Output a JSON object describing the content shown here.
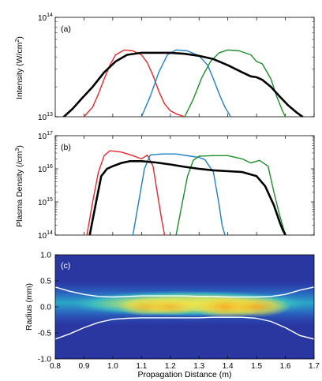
{
  "chart_data": [
    {
      "type": "line",
      "panel_label": "(a)",
      "ylabel": "Intensity (W/cm",
      "ylabel_sup": "2",
      "ylabel_close": ")",
      "yscale": "log",
      "xlim": [
        0.8,
        1.7
      ],
      "ylim": [
        10000000000000.0,
        100000000000000.0
      ],
      "y_ticklabels": [
        {
          "value": 10000000000000.0,
          "base": "10",
          "exp": "13"
        },
        {
          "value": 100000000000000.0,
          "base": "10",
          "exp": "14"
        }
      ],
      "series": [
        {
          "color": "#e8262a",
          "x": [
            0.9,
            0.93,
            0.95,
            0.97,
            0.99,
            1.01,
            1.04,
            1.07,
            1.1,
            1.12,
            1.14,
            1.16,
            1.18,
            1.2,
            1.22,
            1.25
          ],
          "y": [
            10000000000000.0,
            12500000000000.0,
            17000000000000.0,
            24000000000000.0,
            33000000000000.0,
            42000000000000.0,
            47000000000000.0,
            46000000000000.0,
            42000000000000.0,
            35000000000000.0,
            26000000000000.0,
            18000000000000.0,
            13500000000000.0,
            11500000000000.0,
            10700000000000.0,
            10000000000000.0
          ]
        },
        {
          "color": "#1f7fc4",
          "x": [
            1.1,
            1.13,
            1.16,
            1.19,
            1.22,
            1.26,
            1.3,
            1.33,
            1.35,
            1.37,
            1.39,
            1.41
          ],
          "y": [
            10000000000000.0,
            16000000000000.0,
            28000000000000.0,
            42000000000000.0,
            47000000000000.0,
            46000000000000.0,
            41000000000000.0,
            33000000000000.0,
            24000000000000.0,
            17000000000000.0,
            12500000000000.0,
            10000000000000.0
          ]
        },
        {
          "color": "#1e8c2c",
          "x": [
            1.25,
            1.28,
            1.31,
            1.34,
            1.37,
            1.4,
            1.44,
            1.48,
            1.5,
            1.52,
            1.55,
            1.57,
            1.59,
            1.6
          ],
          "y": [
            10000000000000.0,
            15000000000000.0,
            25000000000000.0,
            36000000000000.0,
            44000000000000.0,
            47000000000000.0,
            46000000000000.0,
            42000000000000.0,
            36000000000000.0,
            34000000000000.0,
            24000000000000.0,
            16000000000000.0,
            11500000000000.0,
            10000000000000.0
          ]
        },
        {
          "color": "#000000",
          "x": [
            0.83,
            0.86,
            0.89,
            0.93,
            0.97,
            1.01,
            1.05,
            1.1,
            1.15,
            1.2,
            1.25,
            1.3,
            1.35,
            1.4,
            1.45,
            1.48,
            1.5,
            1.52,
            1.55,
            1.58,
            1.61,
            1.64,
            1.66
          ],
          "y": [
            10000000000000.0,
            12000000000000.0,
            15000000000000.0,
            20000000000000.0,
            28000000000000.0,
            36000000000000.0,
            42000000000000.0,
            44000000000000.0,
            44000000000000.0,
            44000000000000.0,
            43000000000000.0,
            41000000000000.0,
            38000000000000.0,
            33000000000000.0,
            28000000000000.0,
            25500000000000.0,
            25000000000000.0,
            23500000000000.0,
            20000000000000.0,
            16000000000000.0,
            13000000000000.0,
            11000000000000.0,
            10000000000000.0
          ]
        }
      ]
    },
    {
      "type": "line",
      "panel_label": "(b)",
      "ylabel": "Plasma Density (/cm",
      "ylabel_sup": "3",
      "ylabel_close": ")",
      "yscale": "log",
      "xlim": [
        0.8,
        1.7
      ],
      "ylim": [
        100000000000000.0,
        1e+17
      ],
      "y_ticklabels": [
        {
          "value": 100000000000000.0,
          "base": "10",
          "exp": "14"
        },
        {
          "value": 1000000000000000.0,
          "base": "10",
          "exp": "15"
        },
        {
          "value": 1e+16,
          "base": "10",
          "exp": "16"
        },
        {
          "value": 1e+17,
          "base": "10",
          "exp": "17"
        }
      ],
      "series": [
        {
          "color": "#e8262a",
          "x": [
            0.91,
            0.93,
            0.95,
            0.97,
            0.99,
            1.03,
            1.07,
            1.1,
            1.12,
            1.14,
            1.16,
            1.17,
            1.18
          ],
          "y": [
            100000000000000.0,
            1000000000000000.0,
            8000000000000000.0,
            2.5e+16,
            3.5e+16,
            3.2e+16,
            2.5e+16,
            2e+16,
            2.6e+16,
            1.2e+16,
            1000000000000000.0,
            300000000000000.0,
            100000000000000.0
          ]
        },
        {
          "color": "#1f7fc4",
          "x": [
            1.07,
            1.09,
            1.11,
            1.13,
            1.17,
            1.22,
            1.27,
            1.3,
            1.32,
            1.35,
            1.37,
            1.38,
            1.39
          ],
          "y": [
            100000000000000.0,
            1000000000000000.0,
            1e+16,
            2.6e+16,
            2.8e+16,
            2.8e+16,
            2.4e+16,
            2.2e+16,
            1.9e+16,
            8000000000000000.0,
            800000000000000.0,
            200000000000000.0,
            100000000000000.0
          ]
        },
        {
          "color": "#1e8c2c",
          "x": [
            1.22,
            1.24,
            1.26,
            1.28,
            1.3,
            1.35,
            1.4,
            1.45,
            1.48,
            1.51,
            1.54,
            1.56,
            1.58,
            1.6
          ],
          "y": [
            100000000000000.0,
            800000000000000.0,
            6000000000000000.0,
            1.8e+16,
            2.4e+16,
            2.5e+16,
            2.5e+16,
            2e+16,
            1.5e+16,
            1.8e+16,
            1.2e+16,
            2000000000000000.0,
            400000000000000.0,
            100000000000000.0
          ]
        },
        {
          "color": "#000000",
          "x": [
            0.92,
            0.94,
            0.96,
            0.98,
            1.0,
            1.03,
            1.06,
            1.1,
            1.15,
            1.2,
            1.25,
            1.3,
            1.35,
            1.4,
            1.45,
            1.5,
            1.53,
            1.56,
            1.58,
            1.59,
            1.6
          ],
          "y": [
            100000000000000.0,
            800000000000000.0,
            6000000000000000.0,
            1e+16,
            1.2e+16,
            1.5e+16,
            1.7e+16,
            1.7e+16,
            1.55e+16,
            1.35e+16,
            1.15e+16,
            1e+16,
            9000000000000000.0,
            8500000000000000.0,
            8000000000000000.0,
            6000000000000000.0,
            3000000000000000.0,
            800000000000000.0,
            250000000000000.0,
            150000000000000.0,
            100000000000000.0
          ]
        }
      ]
    },
    {
      "type": "heatmap",
      "panel_label": "(c)",
      "ylabel": "Radius (mm)",
      "xlabel": "Propagation Distance (m)",
      "xlim": [
        0.8,
        1.7
      ],
      "ylim": [
        -1.0,
        1.0
      ],
      "x_ticklabels": [
        "0.8",
        "0.9",
        "1.0",
        "1.1",
        "1.2",
        "1.3",
        "1.4",
        "1.5",
        "1.6",
        "1.7"
      ],
      "y_ticklabels": [
        "1.0",
        "0.5",
        "0.0",
        "-0.5",
        "-1.0"
      ],
      "colors": {
        "background": "#2a37a0",
        "mid": "#26b5c6",
        "high": "#f2e54a",
        "peak": "#f9a51e",
        "contour": "#ffffff"
      },
      "contour_upper": {
        "x": [
          0.8,
          0.85,
          0.9,
          0.95,
          1.0,
          1.05,
          1.1,
          1.15,
          1.2,
          1.25,
          1.3,
          1.35,
          1.4,
          1.45,
          1.5,
          1.55,
          1.6,
          1.65,
          1.7
        ],
        "y": [
          0.38,
          0.3,
          0.24,
          0.2,
          0.19,
          0.2,
          0.21,
          0.21,
          0.21,
          0.21,
          0.2,
          0.2,
          0.19,
          0.19,
          0.19,
          0.2,
          0.24,
          0.32,
          0.38
        ]
      },
      "contour_lower": {
        "x": [
          0.8,
          0.85,
          0.9,
          0.95,
          1.0,
          1.05,
          1.1,
          1.15,
          1.2,
          1.25,
          1.3,
          1.35,
          1.4,
          1.45,
          1.5,
          1.55,
          1.6,
          1.65,
          1.7
        ],
        "y": [
          -0.62,
          -0.52,
          -0.4,
          -0.3,
          -0.24,
          -0.22,
          -0.21,
          -0.21,
          -0.21,
          -0.21,
          -0.21,
          -0.2,
          -0.2,
          -0.2,
          -0.22,
          -0.28,
          -0.4,
          -0.55,
          -0.62
        ]
      },
      "hot_spots": [
        {
          "x": 1.12,
          "y": 0.0,
          "strength": 0.75
        },
        {
          "x": 1.2,
          "y": 0.0,
          "strength": 0.7
        },
        {
          "x": 1.4,
          "y": 0.0,
          "strength": 1.0
        },
        {
          "x": 1.5,
          "y": 0.0,
          "strength": 0.9
        }
      ]
    }
  ]
}
